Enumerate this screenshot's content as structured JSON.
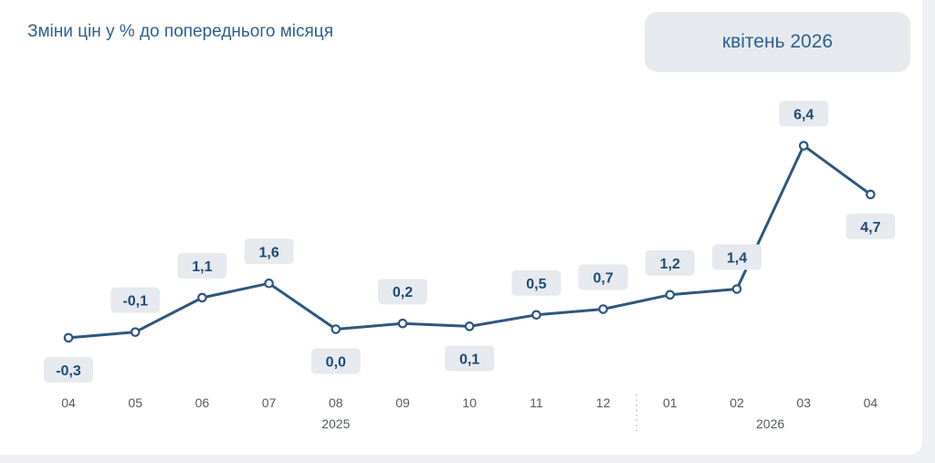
{
  "header": {
    "title": "Зміни цін у % до попереднього місяця",
    "period": "квітень 2026"
  },
  "colors": {
    "line": "#2d5780",
    "label_bg": "#e6eaee",
    "label_text": "#1f4a75"
  },
  "chart_data": {
    "type": "line",
    "title": "Зміни цін у % до попереднього місяця",
    "categories": [
      "04",
      "05",
      "06",
      "07",
      "08",
      "09",
      "10",
      "11",
      "12",
      "01",
      "02",
      "03",
      "04"
    ],
    "values": [
      -0.3,
      -0.1,
      1.1,
      1.6,
      0.0,
      0.2,
      0.1,
      0.5,
      0.7,
      1.2,
      1.4,
      6.4,
      4.7
    ],
    "data_labels": [
      "-0,3",
      "-0,1",
      "1,1",
      "1,6",
      "0,0",
      "0,2",
      "0,1",
      "0,5",
      "0,7",
      "1,2",
      "1,4",
      "6,4",
      "4,7"
    ],
    "label_positions": [
      "below",
      "above",
      "above",
      "above",
      "below",
      "above",
      "below",
      "above",
      "above",
      "above",
      "above",
      "above",
      "below"
    ],
    "year_groups": [
      {
        "label": "2025",
        "from": 0,
        "to": 8
      },
      {
        "label": "2026",
        "from": 9,
        "to": 12
      }
    ],
    "xlabel": "",
    "ylabel": "",
    "grid": false,
    "legend": "none"
  }
}
